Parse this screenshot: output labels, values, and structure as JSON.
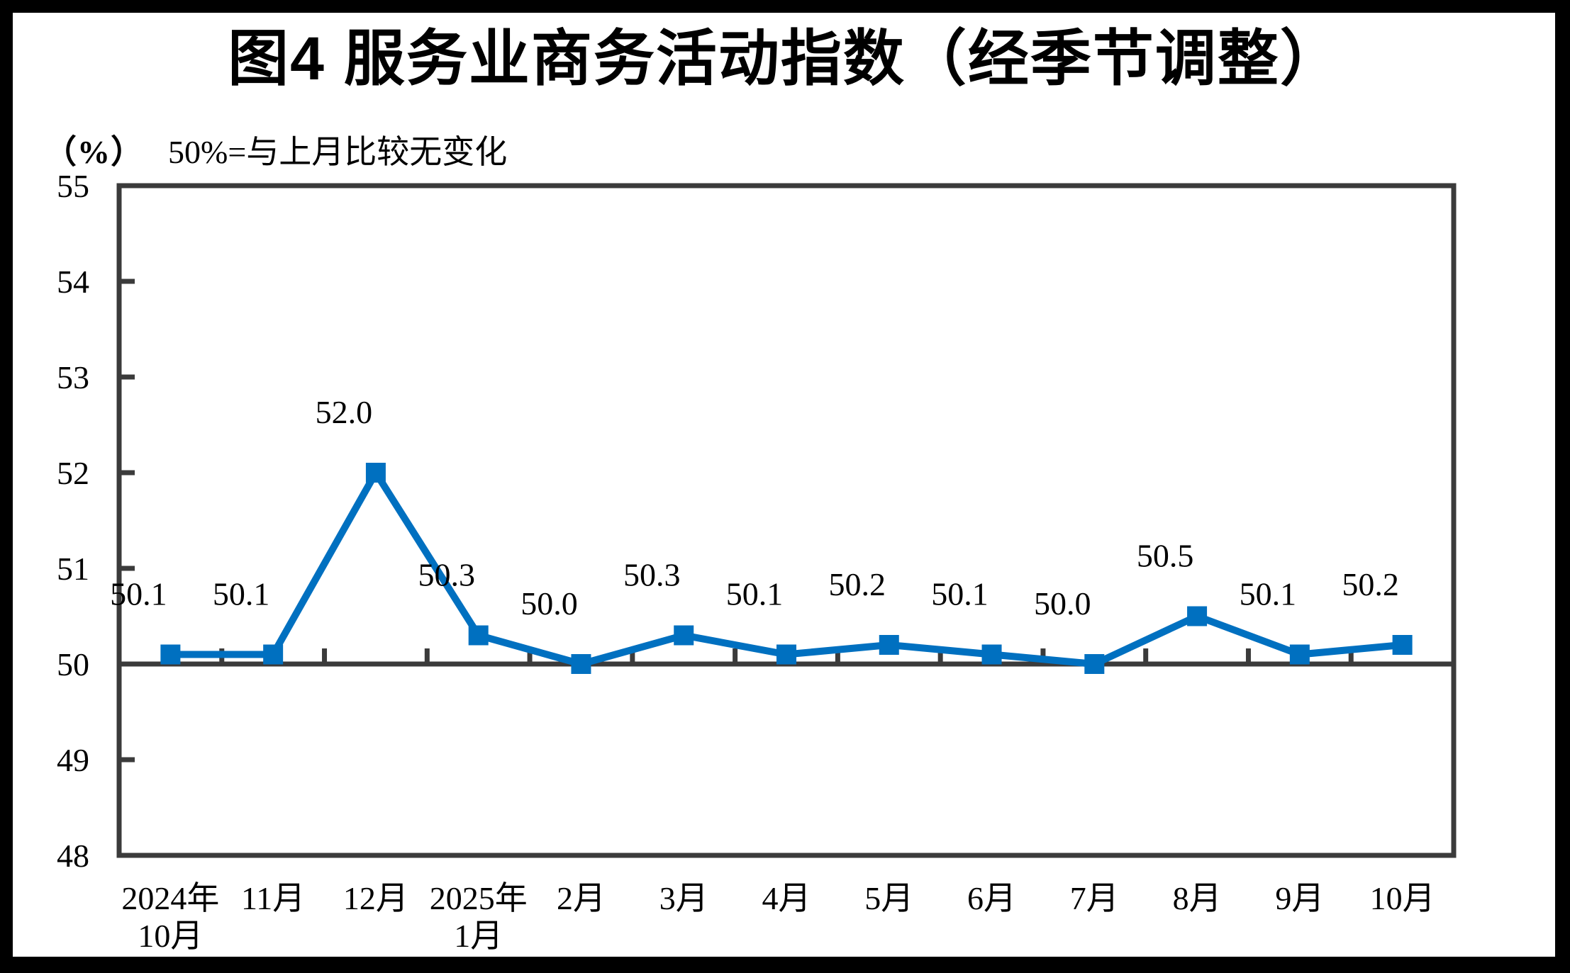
{
  "page": {
    "title": "图4 服务业商务活动指数（经季节调整）",
    "unit_label": "（%）",
    "baseline_note": "50%=与上月比较无变化"
  },
  "chart_data": {
    "type": "line",
    "title": "图4 服务业商务活动指数（经季节调整）",
    "unit_label": "（%）",
    "subtitle": "50%=与上月比较无变化",
    "categories": [
      [
        "2024年",
        "10月"
      ],
      [
        "11月"
      ],
      [
        "12月"
      ],
      [
        "2025年",
        "1月"
      ],
      [
        "2月"
      ],
      [
        "3月"
      ],
      [
        "4月"
      ],
      [
        "5月"
      ],
      [
        "6月"
      ],
      [
        "7月"
      ],
      [
        "8月"
      ],
      [
        "9月"
      ],
      [
        "10月"
      ]
    ],
    "series": [
      {
        "name": "服务业商务活动指数",
        "values": [
          50.1,
          50.1,
          52.0,
          50.3,
          50.0,
          50.3,
          50.1,
          50.2,
          50.1,
          50.0,
          50.5,
          50.1,
          50.2
        ]
      }
    ],
    "data_labels": [
      "50.1",
      "50.1",
      "52.0",
      "50.3",
      "50.0",
      "50.3",
      "50.1",
      "50.2",
      "50.1",
      "50.0",
      "50.5",
      "50.1",
      "50.2"
    ],
    "y_ticks": [
      55,
      54,
      53,
      52,
      51,
      50,
      49,
      48
    ],
    "ylim": [
      48,
      55
    ],
    "baseline_value": 50,
    "grid": false,
    "legend_position": "none",
    "colors": {
      "line": "#0070C0",
      "marker": "#0070C0",
      "axis": "#3B3B3B",
      "text": "#000000",
      "paper": "#FFFFFF",
      "frame": "#000000"
    }
  }
}
